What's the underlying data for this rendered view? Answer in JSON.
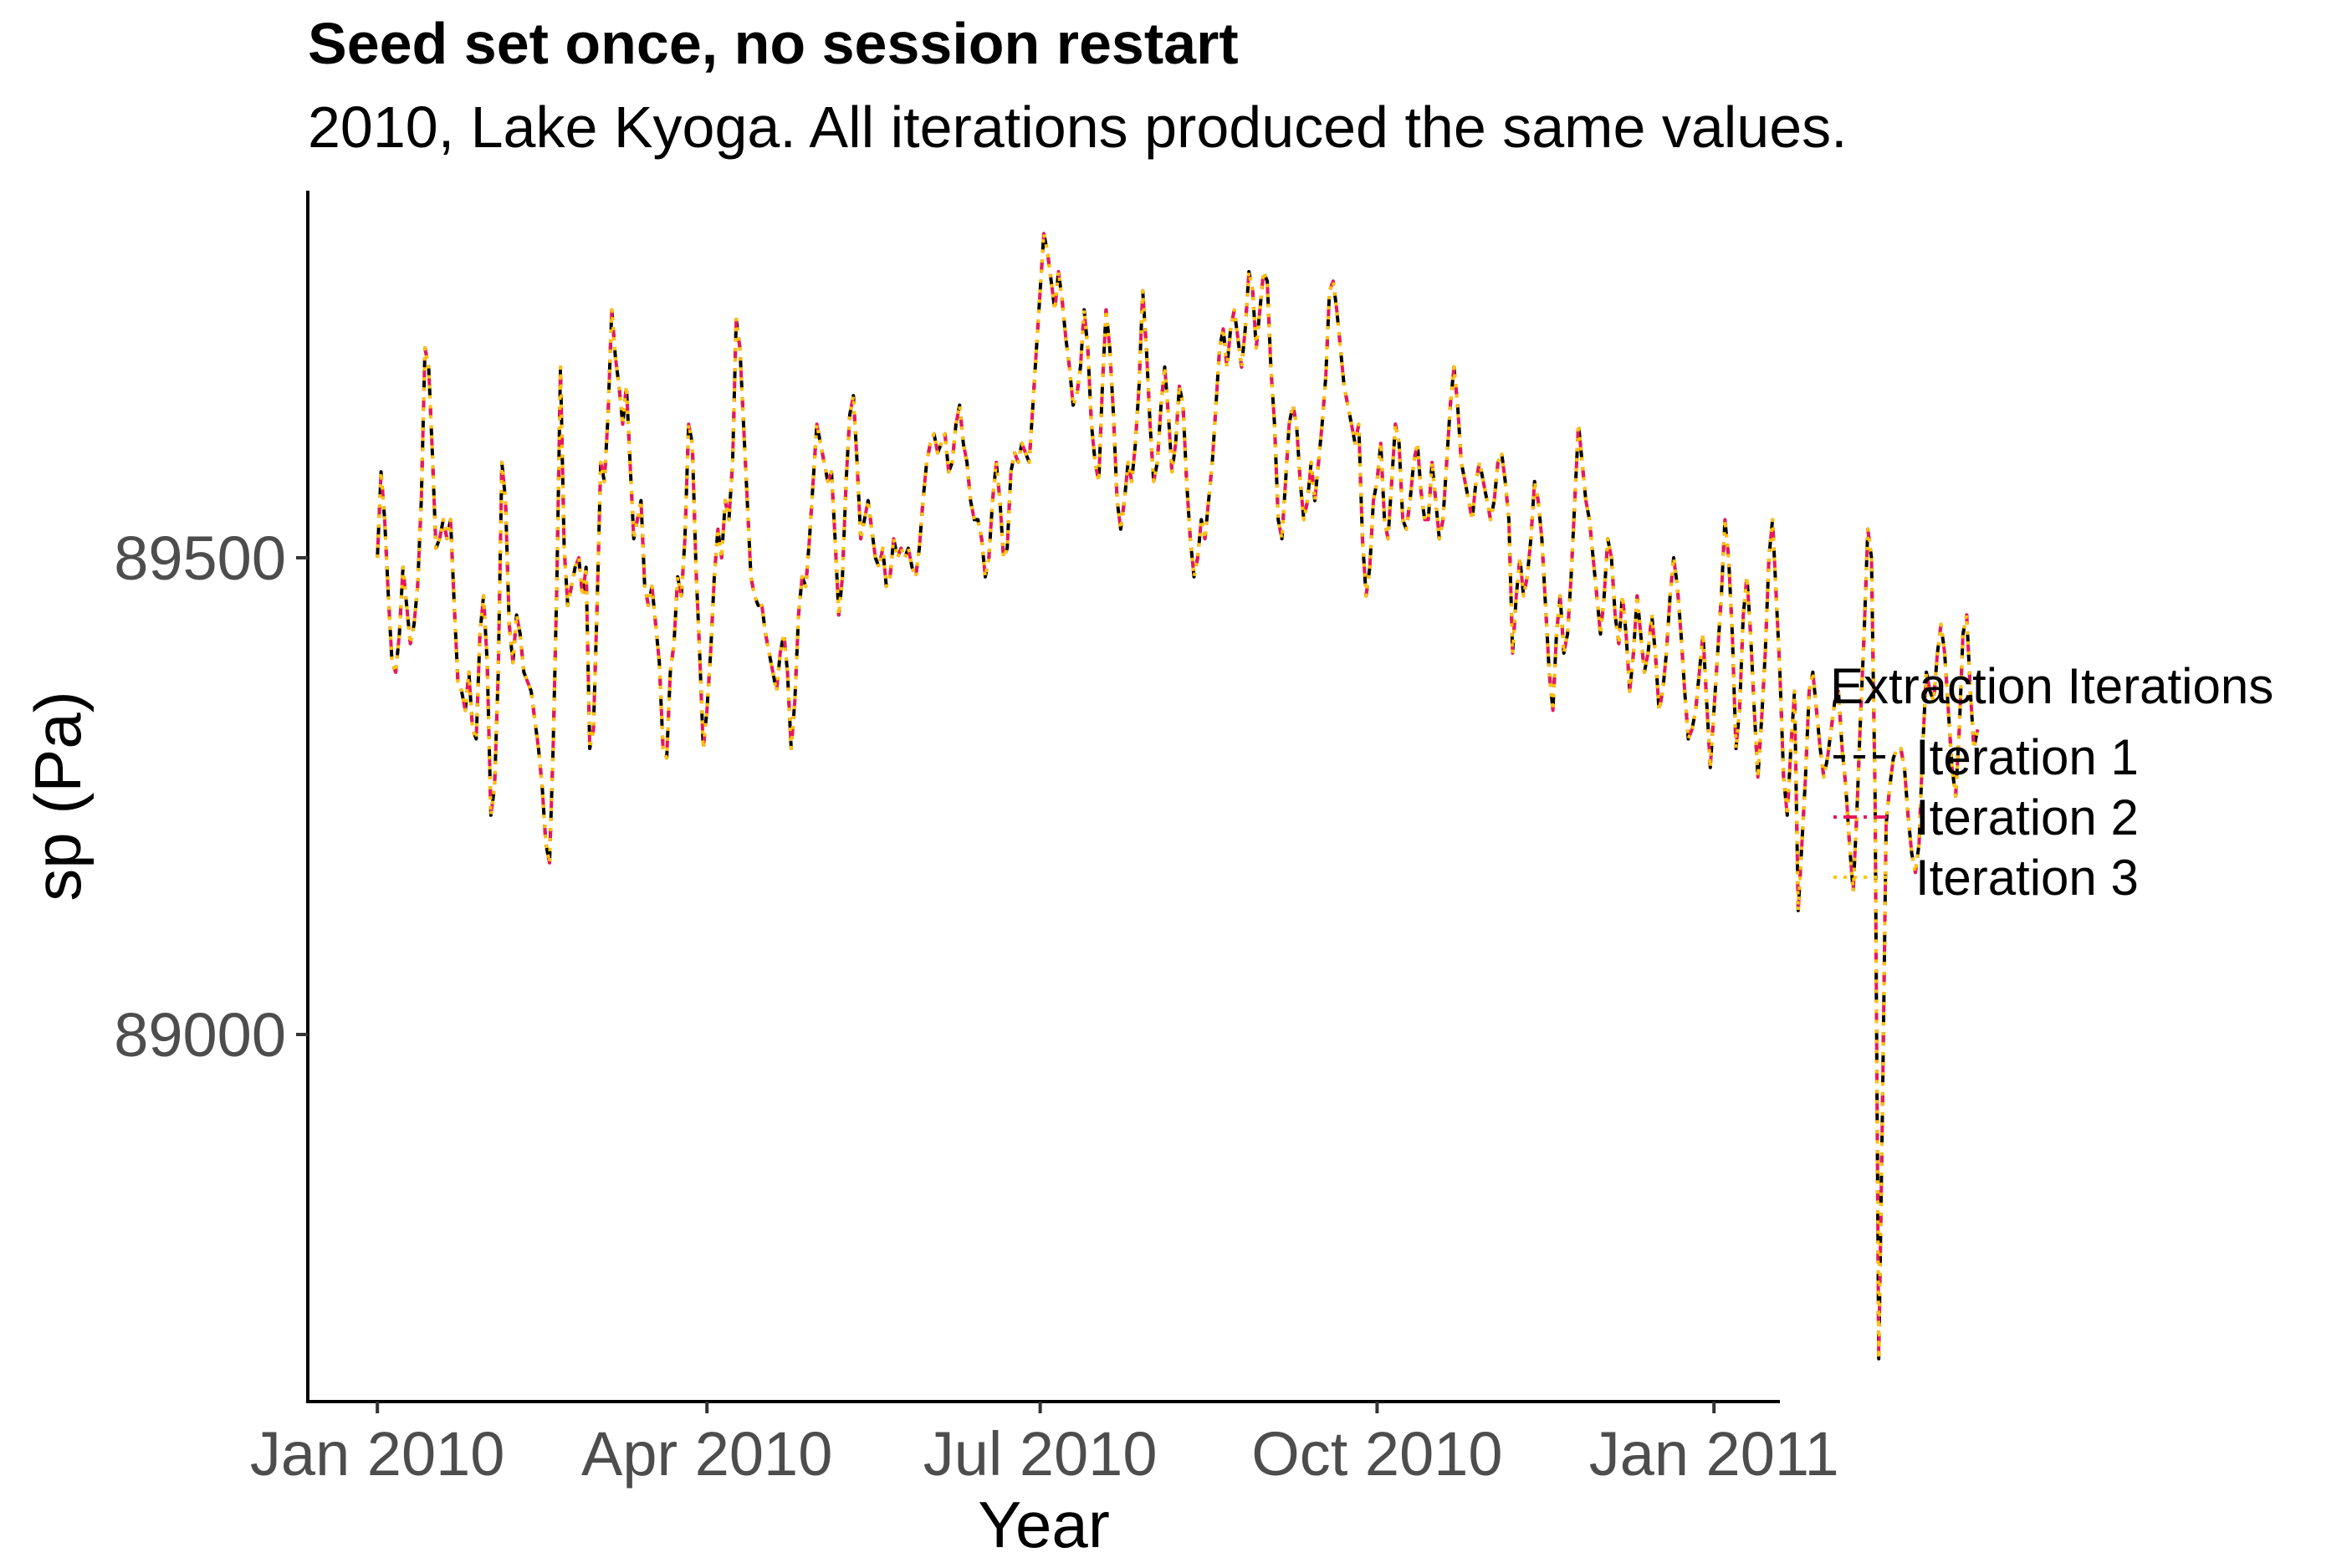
{
  "chart_data": {
    "type": "line",
    "title": "Seed set once, no session restart",
    "subtitle": "2010, Lake Kyoga. All iterations produced the same values.",
    "xlabel": "Year",
    "ylabel": "sp (Pa)",
    "x_ticks": [
      "Jan 2010",
      "Apr 2010",
      "Jul 2010",
      "Oct 2010",
      "Jan 2011"
    ],
    "x_tick_values": [
      "2010-01-01",
      "2010-04-01",
      "2010-07-01",
      "2010-10-01",
      "2011-01-01"
    ],
    "y_ticks": [
      89000,
      89500
    ],
    "xlim": [
      "2009-12-13",
      "2011-01-19"
    ],
    "ylim": [
      88615,
      89885
    ],
    "grid": false,
    "legend_title": "Extraction Iterations",
    "legend_position": "right",
    "series": [
      {
        "name": "Iteration 1",
        "color": "#000000",
        "linestyle": "dashed"
      },
      {
        "name": "Iteration 2",
        "color": "#e8175d",
        "linestyle": "dotdash"
      },
      {
        "name": "Iteration 3",
        "color": "#ffc300",
        "linestyle": "dotted"
      }
    ],
    "x_start": "2010-01-01",
    "x_step": "1 day",
    "values": [
      89500,
      89590,
      89540,
      89460,
      89390,
      89380,
      89420,
      89490,
      89450,
      89410,
      89430,
      89470,
      89560,
      89720,
      89700,
      89610,
      89510,
      89520,
      89540,
      89520,
      89540,
      89450,
      89370,
      89360,
      89340,
      89380,
      89320,
      89310,
      89420,
      89460,
      89390,
      89230,
      89260,
      89380,
      89600,
      89560,
      89430,
      89390,
      89440,
      89420,
      89380,
      89370,
      89360,
      89330,
      89300,
      89260,
      89200,
      89180,
      89300,
      89470,
      89700,
      89510,
      89450,
      89470,
      89490,
      89500,
      89460,
      89490,
      89300,
      89320,
      89450,
      89600,
      89580,
      89650,
      89760,
      89710,
      89680,
      89640,
      89680,
      89600,
      89520,
      89540,
      89560,
      89470,
      89450,
      89470,
      89430,
      89390,
      89300,
      89290,
      89380,
      89410,
      89480,
      89460,
      89520,
      89640,
      89620,
      89490,
      89400,
      89300,
      89340,
      89400,
      89480,
      89530,
      89500,
      89560,
      89540,
      89600,
      89750,
      89720,
      89640,
      89560,
      89480,
      89460,
      89450,
      89450,
      89420,
      89400,
      89380,
      89360,
      89400,
      89420,
      89380,
      89300,
      89350,
      89440,
      89480,
      89470,
      89520,
      89580,
      89640,
      89620,
      89600,
      89580,
      89590,
      89520,
      89440,
      89480,
      89580,
      89650,
      89670,
      89600,
      89520,
      89540,
      89560,
      89530,
      89500,
      89490,
      89510,
      89470,
      89480,
      89520,
      89500,
      89510,
      89500,
      89510,
      89490,
      89480,
      89510,
      89560,
      89600,
      89620,
      89630,
      89610,
      89620,
      89630,
      89590,
      89600,
      89640,
      89660,
      89620,
      89600,
      89560,
      89540,
      89540,
      89520,
      89480,
      89500,
      89560,
      89600,
      89560,
      89500,
      89510,
      89590,
      89610,
      89600,
      89620,
      89610,
      89600,
      89660,
      89720,
      89780,
      89840,
      89820,
      89790,
      89760,
      89800,
      89770,
      89730,
      89700,
      89660,
      89670,
      89700,
      89760,
      89720,
      89640,
      89600,
      89580,
      89680,
      89760,
      89720,
      89650,
      89560,
      89530,
      89560,
      89600,
      89580,
      89620,
      89680,
      89780,
      89720,
      89640,
      89580,
      89600,
      89660,
      89700,
      89650,
      89590,
      89620,
      89680,
      89660,
      89580,
      89520,
      89480,
      89500,
      89540,
      89520,
      89560,
      89600,
      89660,
      89720,
      89740,
      89700,
      89740,
      89760,
      89730,
      89700,
      89740,
      89800,
      89780,
      89720,
      89760,
      89800,
      89790,
      89700,
      89640,
      89540,
      89520,
      89580,
      89640,
      89660,
      89640,
      89580,
      89540,
      89560,
      89600,
      89560,
      89600,
      89640,
      89690,
      89780,
      89790,
      89760,
      89720,
      89680,
      89660,
      89640,
      89620,
      89640,
      89520,
      89460,
      89490,
      89560,
      89580,
      89620,
      89540,
      89520,
      89580,
      89640,
      89620,
      89540,
      89530,
      89560,
      89600,
      89620,
      89570,
      89540,
      89540,
      89600,
      89560,
      89520,
      89540,
      89600,
      89660,
      89700,
      89660,
      89600,
      89580,
      89560,
      89540,
      89580,
      89600,
      89580,
      89560,
      89540,
      89560,
      89600,
      89610,
      89580,
      89540,
      89400,
      89460,
      89500,
      89460,
      89480,
      89520,
      89580,
      89560,
      89520,
      89450,
      89380,
      89340,
      89420,
      89460,
      89400,
      89420,
      89480,
      89560,
      89640,
      89600,
      89560,
      89540,
      89500,
      89460,
      89420,
      89460,
      89520,
      89500,
      89440,
      89410,
      89460,
      89420,
      89360,
      89400,
      89460,
      89420,
      89380,
      89400,
      89440,
      89400,
      89340,
      89360,
      89400,
      89460,
      89500,
      89470,
      89420,
      89360,
      89310,
      89320,
      89340,
      89380,
      89420,
      89350,
      89280,
      89340,
      89400,
      89460,
      89540,
      89500,
      89420,
      89300,
      89340,
      89440,
      89480,
      89420,
      89340,
      89270,
      89330,
      89400,
      89500,
      89540,
      89460,
      89380,
      89270,
      89230,
      89300,
      89360,
      89130,
      89200,
      89270,
      89360,
      89380,
      89340,
      89300,
      89270,
      89290,
      89320,
      89350,
      89360,
      89300,
      89260,
      89200,
      89150,
      89230,
      89330,
      89420,
      89530,
      89500,
      89250,
      88660,
      88920,
      89220,
      89260,
      89290,
      89300,
      89300,
      89280,
      89230,
      89190,
      89170,
      89200,
      89300,
      89380,
      89360,
      89350,
      89400,
      89430,
      89400,
      89340,
      89280,
      89250,
      89320,
      89420,
      89440,
      89360,
      89300,
      89320
    ]
  }
}
